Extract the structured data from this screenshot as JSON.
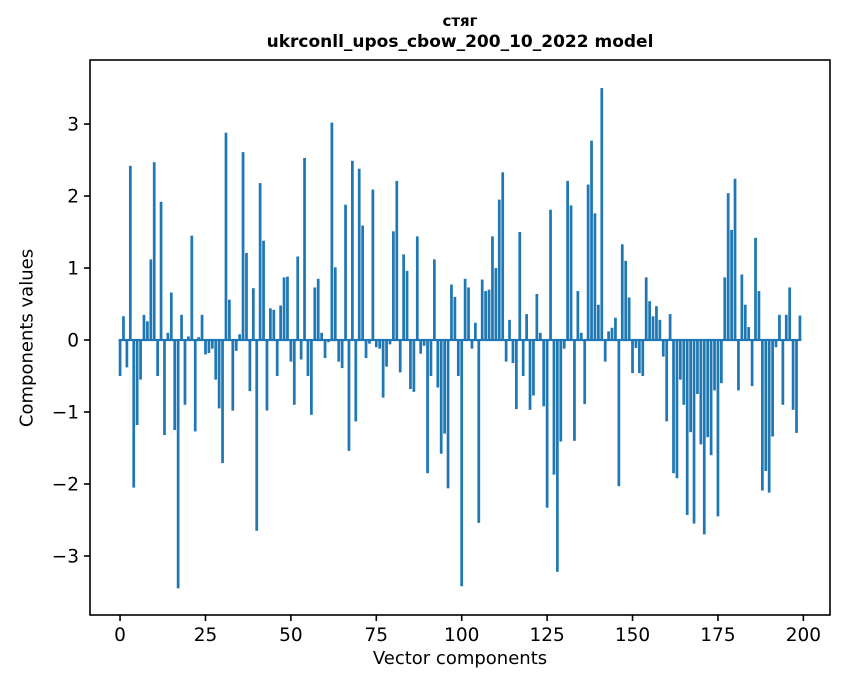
{
  "figure": {
    "title_line1": "стяг",
    "title_line2": "ukrconll_upos_cbow_200_10_2022 model",
    "xlabel": "Vector components",
    "ylabel": "Components values"
  },
  "chart_data": {
    "type": "bar",
    "title": "стяг",
    "subtitle": "ukrconll_upos_cbow_200_10_2022 model",
    "xlabel": "Vector components",
    "ylabel": "Components values",
    "bar_color": "#1f77b4",
    "background_color": "#ffffff",
    "axis_color": "#000000",
    "grid": false,
    "legend": false,
    "xlim": [
      -8.8,
      207.8
    ],
    "ylim": [
      -3.82,
      3.89
    ],
    "x_ticks": [
      0,
      25,
      50,
      75,
      100,
      125,
      150,
      175,
      200
    ],
    "x_tick_labels": [
      "0",
      "25",
      "50",
      "75",
      "100",
      "125",
      "150",
      "175",
      "200"
    ],
    "y_ticks": [
      3,
      2,
      1,
      0,
      -1,
      -2,
      -3
    ],
    "y_tick_labels": [
      "3",
      "2",
      "1",
      "0",
      "−1",
      "−2",
      "−3"
    ],
    "values": [
      -0.5,
      0.33,
      -0.38,
      2.42,
      -2.05,
      -1.18,
      -0.55,
      0.35,
      0.26,
      1.12,
      2.47,
      -0.5,
      1.92,
      -1.32,
      0.1,
      0.66,
      -1.25,
      -3.45,
      0.35,
      -0.9,
      0.05,
      1.45,
      -1.27,
      0.04,
      0.35,
      -0.2,
      -0.18,
      -0.12,
      -0.55,
      -0.95,
      -1.71,
      2.88,
      0.56,
      -0.98,
      -0.15,
      0.08,
      2.61,
      1.21,
      -0.71,
      0.72,
      -2.65,
      2.18,
      1.38,
      -0.98,
      0.44,
      0.42,
      -0.5,
      0.48,
      0.87,
      0.88,
      -0.3,
      -0.9,
      1.16,
      -0.27,
      2.53,
      -0.5,
      -1.04,
      0.73,
      0.85,
      0.1,
      -0.25,
      -0.03,
      3.02,
      1.01,
      -0.3,
      -0.39,
      1.88,
      -1.54,
      2.49,
      -1.13,
      2.38,
      1.59,
      -0.25,
      -0.05,
      2.09,
      -0.1,
      -0.12,
      -0.8,
      -0.37,
      -0.06,
      1.51,
      2.21,
      -0.45,
      1.19,
      0.96,
      -0.68,
      -0.72,
      1.44,
      -0.19,
      -0.08,
      -1.85,
      -0.5,
      1.12,
      -0.66,
      -1.58,
      -1.3,
      -2.06,
      0.77,
      0.6,
      -0.5,
      -3.42,
      0.85,
      0.73,
      -0.12,
      0.24,
      -2.54,
      0.84,
      0.68,
      0.7,
      1.44,
      1.0,
      1.95,
      2.33,
      -0.3,
      0.28,
      -0.32,
      -0.96,
      1.5,
      -0.5,
      0.36,
      -0.97,
      -0.77,
      0.64,
      0.1,
      -0.92,
      -2.33,
      1.81,
      -1.87,
      -3.22,
      -1.41,
      -0.12,
      2.21,
      1.87,
      -1.4,
      0.68,
      0.1,
      -0.89,
      2.16,
      2.77,
      1.76,
      0.49,
      3.5,
      -0.3,
      0.12,
      0.17,
      0.31,
      -2.03,
      1.33,
      1.1,
      0.59,
      -0.46,
      -0.11,
      -0.46,
      -0.5,
      0.87,
      0.54,
      0.33,
      0.47,
      0.28,
      -0.23,
      -1.13,
      0.36,
      -1.85,
      -1.92,
      -0.55,
      -0.9,
      -2.43,
      -1.28,
      -2.55,
      -0.75,
      -1.45,
      -2.7,
      -1.35,
      -1.6,
      -0.7,
      -2.45,
      -0.6,
      0.87,
      2.04,
      1.53,
      2.24,
      -0.7,
      0.91,
      0.49,
      0.18,
      -0.64,
      1.42,
      0.68,
      -2.09,
      -1.82,
      -2.12,
      -1.34,
      -0.1,
      0.35,
      -0.9,
      0.35,
      0.73,
      -0.97,
      -1.29,
      0.34
    ]
  }
}
